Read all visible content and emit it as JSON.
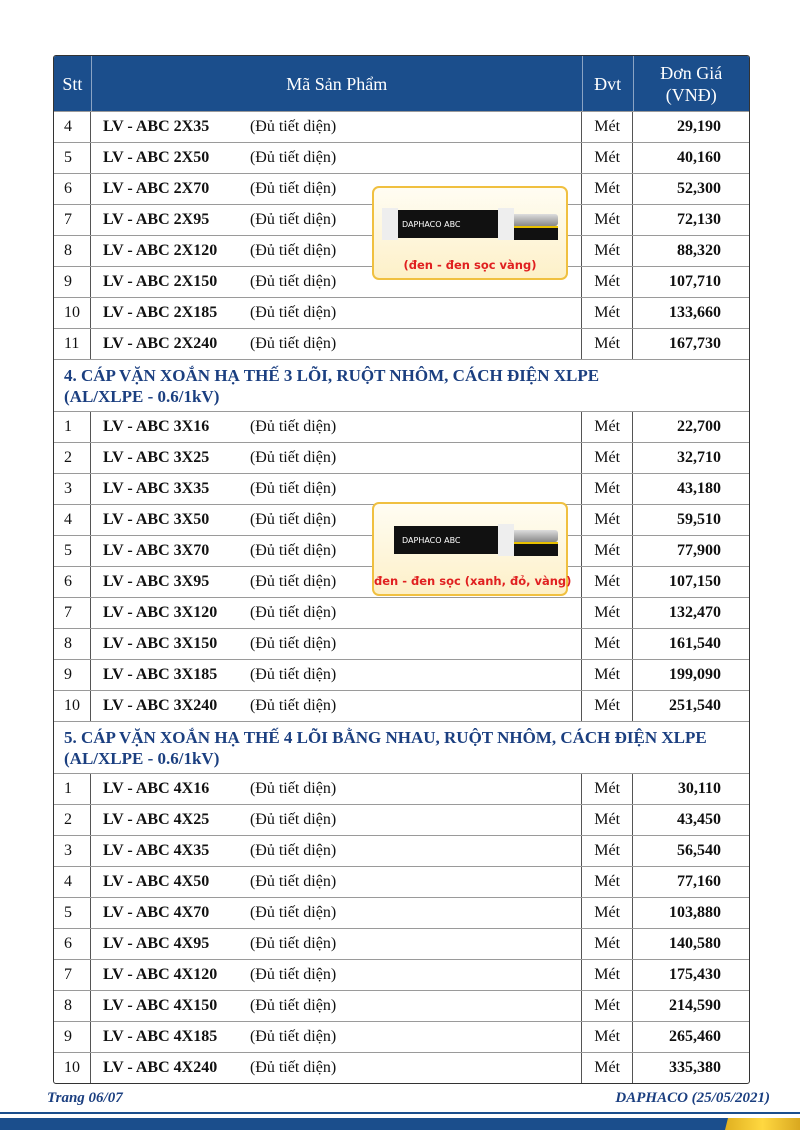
{
  "header": {
    "stt": "Stt",
    "product": "Mã Sản Phẩm",
    "unit": "Đvt",
    "price_line1": "Đơn Giá",
    "price_line2": "(VNĐ)"
  },
  "note": "(Đủ tiết diện)",
  "unit": "Mét",
  "group1": [
    {
      "stt": "4",
      "code": "LV - ABC 2X35",
      "price": "29,190"
    },
    {
      "stt": "5",
      "code": "LV - ABC 2X50",
      "price": "40,160"
    },
    {
      "stt": "6",
      "code": "LV - ABC 2X70",
      "price": "52,300"
    },
    {
      "stt": "7",
      "code": "LV - ABC 2X95",
      "price": "72,130"
    },
    {
      "stt": "8",
      "code": "LV - ABC 2X120",
      "price": "88,320"
    },
    {
      "stt": "9",
      "code": "LV - ABC 2X150",
      "price": "107,710"
    },
    {
      "stt": "10",
      "code": "LV - ABC 2X185",
      "price": "133,660"
    },
    {
      "stt": "11",
      "code": "LV - ABC 2X240",
      "price": "167,730"
    }
  ],
  "section4": {
    "line1": "4. CÁP VẶN XOẮN HẠ THẾ 3 LÕI, RUỘT NHÔM, CÁCH ĐIỆN XLPE",
    "line2": "(AL/XLPE - 0.6/1kV)"
  },
  "group2": [
    {
      "stt": "1",
      "code": "LV - ABC 3X16",
      "price": "22,700"
    },
    {
      "stt": "2",
      "code": "LV - ABC 3X25",
      "price": "32,710"
    },
    {
      "stt": "3",
      "code": "LV - ABC 3X35",
      "price": "43,180"
    },
    {
      "stt": "4",
      "code": "LV - ABC 3X50",
      "price": "59,510"
    },
    {
      "stt": "5",
      "code": "LV - ABC 3X70",
      "price": "77,900"
    },
    {
      "stt": "6",
      "code": "LV - ABC 3X95",
      "price": "107,150"
    },
    {
      "stt": "7",
      "code": "LV - ABC 3X120",
      "price": "132,470"
    },
    {
      "stt": "8",
      "code": "LV - ABC 3X150",
      "price": "161,540"
    },
    {
      "stt": "9",
      "code": "LV - ABC 3X185",
      "price": "199,090"
    },
    {
      "stt": "10",
      "code": "LV - ABC 3X240",
      "price": "251,540"
    }
  ],
  "section5": {
    "line1": "5. CÁP VẶN XOẮN HẠ THẾ 4 LÕI BẰNG NHAU, RUỘT NHÔM, CÁCH ĐIỆN XLPE",
    "line2": "(AL/XLPE - 0.6/1kV)"
  },
  "group3": [
    {
      "stt": "1",
      "code": "LV - ABC 4X16",
      "price": "30,110"
    },
    {
      "stt": "2",
      "code": "LV - ABC 4X25",
      "price": "43,450"
    },
    {
      "stt": "3",
      "code": "LV - ABC 4X35",
      "price": "56,540"
    },
    {
      "stt": "4",
      "code": "LV - ABC 4X50",
      "price": "77,160"
    },
    {
      "stt": "5",
      "code": "LV - ABC 4X70",
      "price": "103,880"
    },
    {
      "stt": "6",
      "code": "LV - ABC 4X95",
      "price": "140,580"
    },
    {
      "stt": "7",
      "code": "LV - ABC 4X120",
      "price": "175,430"
    },
    {
      "stt": "8",
      "code": "LV - ABC 4X150",
      "price": "214,590"
    },
    {
      "stt": "9",
      "code": "LV - ABC 4X185",
      "price": "265,460"
    },
    {
      "stt": "10",
      "code": "LV - ABC 4X240",
      "price": "335,380"
    }
  ],
  "images": [
    {
      "brand": "DAPHACO ABC",
      "caption": "(đen - đen sọc vàng)"
    },
    {
      "brand": "DAPHACO ABC",
      "caption": "đen - đen sọc (xanh, đỏ, vàng)"
    }
  ],
  "footer": {
    "page": "Trang 06/07",
    "company": "DAPHACO (25/05/2021)"
  },
  "colors": {
    "header_bg": "#1b4e8c",
    "section_text": "#1b3f80",
    "caption": "#e02020"
  }
}
